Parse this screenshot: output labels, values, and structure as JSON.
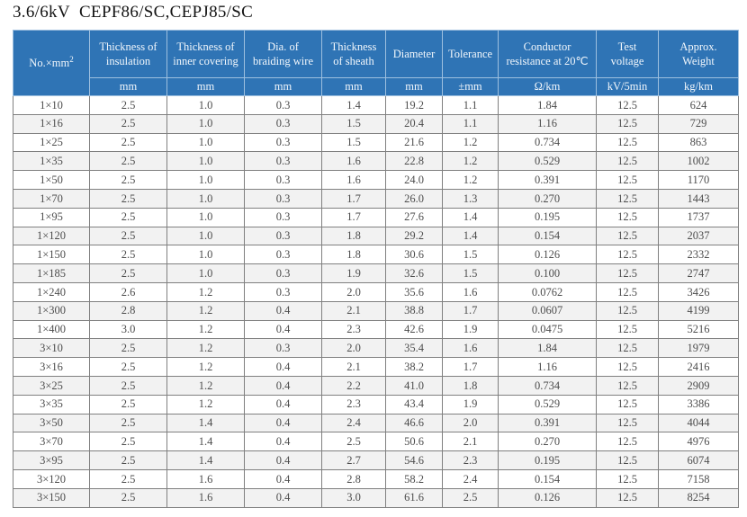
{
  "title": "3.6/6kV  CEPF86/SC,CEPJ85/SC",
  "colors": {
    "header_bg": "#2f74b5",
    "header_text": "#f2f7fc",
    "stripe": "#f2f2f2",
    "border": "#808080",
    "body_text": "#4d4d4d"
  },
  "table": {
    "columns": [
      {
        "label": "No.×mm",
        "sup": "2",
        "unit": ""
      },
      {
        "label": "Thickness of insulation",
        "unit": "mm"
      },
      {
        "label": "Thickness of inner covering",
        "unit": "mm"
      },
      {
        "label": "Dia. of braiding wire",
        "unit": "mm"
      },
      {
        "label": "Thickness of sheath",
        "unit": "mm"
      },
      {
        "label": "Diameter",
        "unit": "mm"
      },
      {
        "label": "Tolerance",
        "unit": "±mm"
      },
      {
        "label": "Conductor resistance at 20℃",
        "unit": "Ω/km"
      },
      {
        "label": "Test voltage",
        "unit": "kV/5min"
      },
      {
        "label": "Approx. Weight",
        "unit": "kg/km"
      }
    ],
    "rows": [
      [
        "1×10",
        "2.5",
        "1.0",
        "0.3",
        "1.4",
        "19.2",
        "1.1",
        "1.84",
        "12.5",
        "624"
      ],
      [
        "1×16",
        "2.5",
        "1.0",
        "0.3",
        "1.5",
        "20.4",
        "1.1",
        "1.16",
        "12.5",
        "729"
      ],
      [
        "1×25",
        "2.5",
        "1.0",
        "0.3",
        "1.5",
        "21.6",
        "1.2",
        "0.734",
        "12.5",
        "863"
      ],
      [
        "1×35",
        "2.5",
        "1.0",
        "0.3",
        "1.6",
        "22.8",
        "1.2",
        "0.529",
        "12.5",
        "1002"
      ],
      [
        "1×50",
        "2.5",
        "1.0",
        "0.3",
        "1.6",
        "24.0",
        "1.2",
        "0.391",
        "12.5",
        "1170"
      ],
      [
        "1×70",
        "2.5",
        "1.0",
        "0.3",
        "1.7",
        "26.0",
        "1.3",
        "0.270",
        "12.5",
        "1443"
      ],
      [
        "1×95",
        "2.5",
        "1.0",
        "0.3",
        "1.7",
        "27.6",
        "1.4",
        "0.195",
        "12.5",
        "1737"
      ],
      [
        "1×120",
        "2.5",
        "1.0",
        "0.3",
        "1.8",
        "29.2",
        "1.4",
        "0.154",
        "12.5",
        "2037"
      ],
      [
        "1×150",
        "2.5",
        "1.0",
        "0.3",
        "1.8",
        "30.6",
        "1.5",
        "0.126",
        "12.5",
        "2332"
      ],
      [
        "1×185",
        "2.5",
        "1.0",
        "0.3",
        "1.9",
        "32.6",
        "1.5",
        "0.100",
        "12.5",
        "2747"
      ],
      [
        "1×240",
        "2.6",
        "1.2",
        "0.3",
        "2.0",
        "35.6",
        "1.6",
        "0.0762",
        "12.5",
        "3426"
      ],
      [
        "1×300",
        "2.8",
        "1.2",
        "0.4",
        "2.1",
        "38.8",
        "1.7",
        "0.0607",
        "12.5",
        "4199"
      ],
      [
        "1×400",
        "3.0",
        "1.2",
        "0.4",
        "2.3",
        "42.6",
        "1.9",
        "0.0475",
        "12.5",
        "5216"
      ],
      [
        "3×10",
        "2.5",
        "1.2",
        "0.3",
        "2.0",
        "35.4",
        "1.6",
        "1.84",
        "12.5",
        "1979"
      ],
      [
        "3×16",
        "2.5",
        "1.2",
        "0.4",
        "2.1",
        "38.2",
        "1.7",
        "1.16",
        "12.5",
        "2416"
      ],
      [
        "3×25",
        "2.5",
        "1.2",
        "0.4",
        "2.2",
        "41.0",
        "1.8",
        "0.734",
        "12.5",
        "2909"
      ],
      [
        "3×35",
        "2.5",
        "1.2",
        "0.4",
        "2.3",
        "43.4",
        "1.9",
        "0.529",
        "12.5",
        "3386"
      ],
      [
        "3×50",
        "2.5",
        "1.4",
        "0.4",
        "2.4",
        "46.6",
        "2.0",
        "0.391",
        "12.5",
        "4044"
      ],
      [
        "3×70",
        "2.5",
        "1.4",
        "0.4",
        "2.5",
        "50.6",
        "2.1",
        "0.270",
        "12.5",
        "4976"
      ],
      [
        "3×95",
        "2.5",
        "1.4",
        "0.4",
        "2.7",
        "54.6",
        "2.3",
        "0.195",
        "12.5",
        "6074"
      ],
      [
        "3×120",
        "2.5",
        "1.6",
        "0.4",
        "2.8",
        "58.2",
        "2.4",
        "0.154",
        "12.5",
        "7158"
      ],
      [
        "3×150",
        "2.5",
        "1.6",
        "0.4",
        "3.0",
        "61.6",
        "2.5",
        "0.126",
        "12.5",
        "8254"
      ]
    ]
  }
}
